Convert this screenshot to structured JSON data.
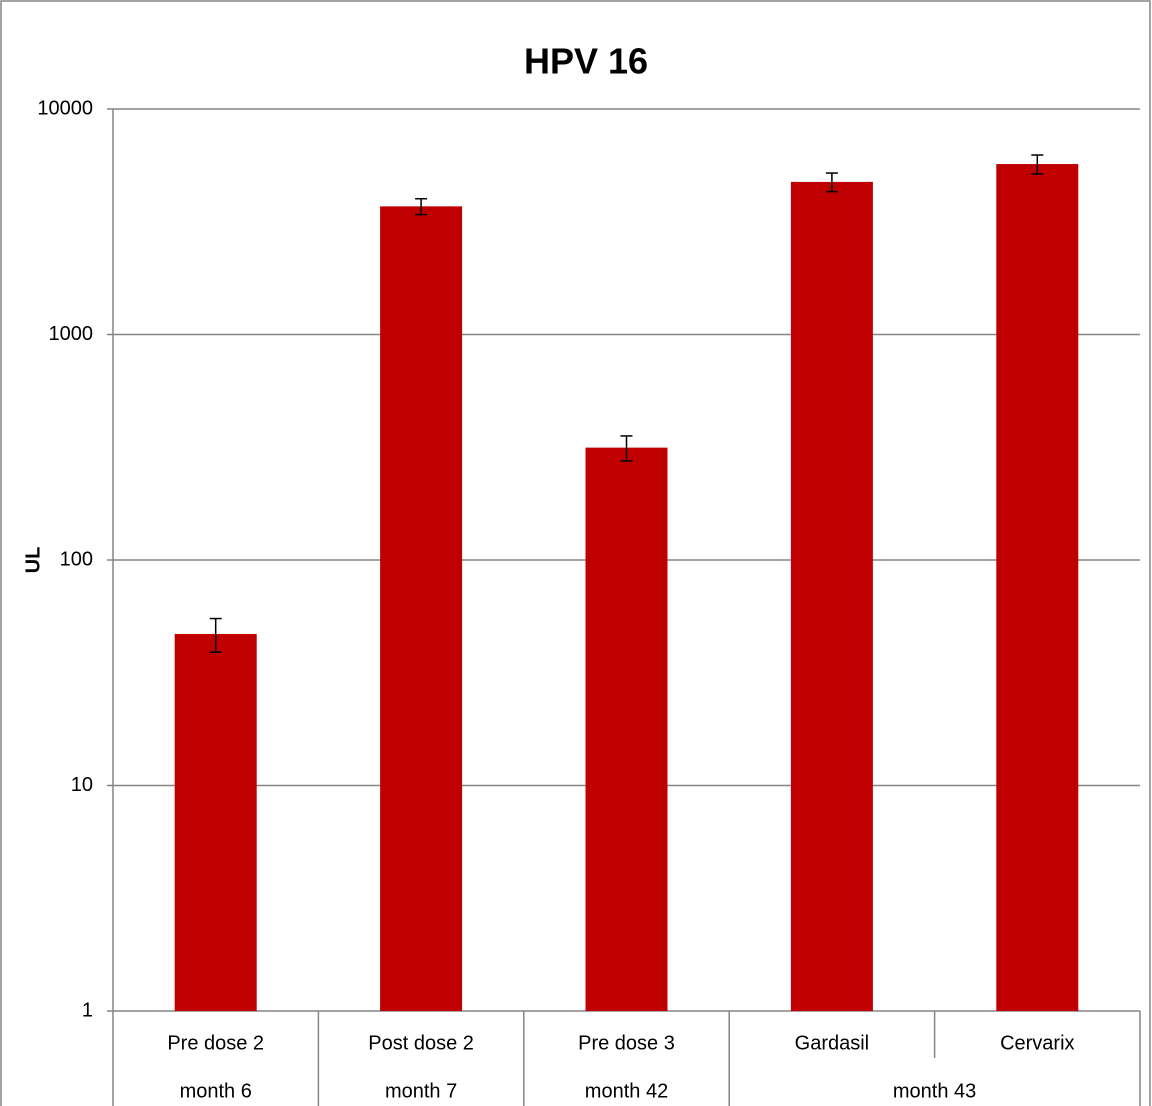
{
  "chart_data": {
    "type": "bar",
    "title": "HPV 16",
    "y_label": "UL",
    "categories": [
      [
        "Pre dose 2",
        "month 6"
      ],
      [
        "Post dose 2",
        "month 7"
      ],
      [
        "Pre dose 3",
        "month 42"
      ],
      [
        "Gardasil",
        "month 43"
      ],
      [
        "Cervarix",
        "month 43"
      ]
    ],
    "series": [
      {
        "name": "UL",
        "color": "#c00000",
        "values": [
          47,
          3700,
          315,
          4750,
          5700
        ],
        "errors": [
          8,
          300,
          40,
          450,
          550
        ]
      }
    ],
    "ylim": [
      1,
      10000
    ],
    "yticks": [
      1,
      10,
      100,
      1000,
      10000
    ],
    "log_scale": true,
    "grid": true
  }
}
